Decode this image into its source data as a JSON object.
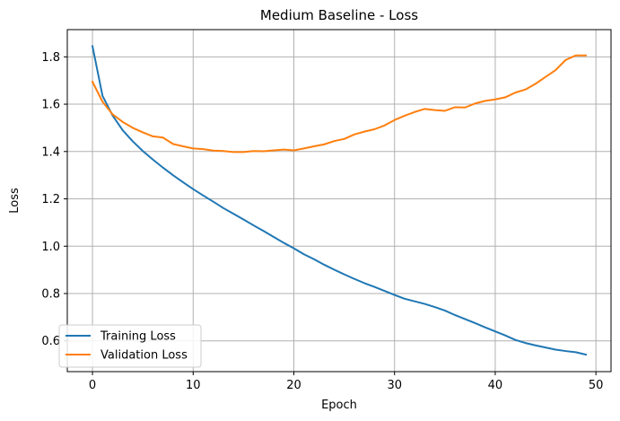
{
  "chart_data": {
    "type": "line",
    "title": "Medium Baseline - Loss",
    "xlabel": "Epoch",
    "ylabel": "Loss",
    "xlim": [
      -2.5,
      51.5
    ],
    "ylim": [
      0.47,
      1.915
    ],
    "xticks": [
      0,
      10,
      20,
      30,
      40,
      50
    ],
    "yticks": [
      0.6,
      0.8,
      1.0,
      1.2,
      1.4,
      1.6,
      1.8
    ],
    "xtick_labels": [
      "0",
      "10",
      "20",
      "30",
      "40",
      "50"
    ],
    "ytick_labels": [
      "0.6",
      "0.8",
      "1.0",
      "1.2",
      "1.4",
      "1.6",
      "1.8"
    ],
    "grid": true,
    "legend_position": "lower-left",
    "x": [
      0,
      1,
      2,
      3,
      4,
      5,
      6,
      7,
      8,
      9,
      10,
      11,
      12,
      13,
      14,
      15,
      16,
      17,
      18,
      19,
      20,
      21,
      22,
      23,
      24,
      25,
      26,
      27,
      28,
      29,
      30,
      31,
      32,
      33,
      34,
      35,
      36,
      37,
      38,
      39,
      40,
      41,
      42,
      43,
      44,
      45,
      46,
      47,
      48,
      49
    ],
    "series": [
      {
        "name": "Training Loss",
        "color": "#1f77b4",
        "values": [
          1.845,
          1.635,
          1.552,
          1.49,
          1.443,
          1.402,
          1.366,
          1.332,
          1.3,
          1.27,
          1.241,
          1.214,
          1.188,
          1.161,
          1.137,
          1.113,
          1.088,
          1.064,
          1.039,
          1.014,
          0.991,
          0.966,
          0.945,
          0.922,
          0.901,
          0.881,
          0.862,
          0.844,
          0.828,
          0.811,
          0.794,
          0.778,
          0.767,
          0.756,
          0.743,
          0.728,
          0.709,
          0.692,
          0.675,
          0.657,
          0.64,
          0.623,
          0.604,
          0.591,
          0.581,
          0.572,
          0.563,
          0.557,
          0.552,
          0.542
        ]
      },
      {
        "name": "Validation Loss",
        "color": "#ff7f0e",
        "values": [
          1.695,
          1.61,
          1.557,
          1.525,
          1.5,
          1.481,
          1.464,
          1.459,
          1.432,
          1.422,
          1.413,
          1.41,
          1.404,
          1.402,
          1.398,
          1.398,
          1.402,
          1.401,
          1.405,
          1.408,
          1.405,
          1.413,
          1.422,
          1.43,
          1.444,
          1.453,
          1.472,
          1.484,
          1.494,
          1.51,
          1.533,
          1.551,
          1.567,
          1.58,
          1.575,
          1.572,
          1.587,
          1.586,
          1.603,
          1.614,
          1.62,
          1.629,
          1.649,
          1.662,
          1.686,
          1.715,
          1.744,
          1.787,
          1.806,
          1.806
        ]
      }
    ]
  }
}
